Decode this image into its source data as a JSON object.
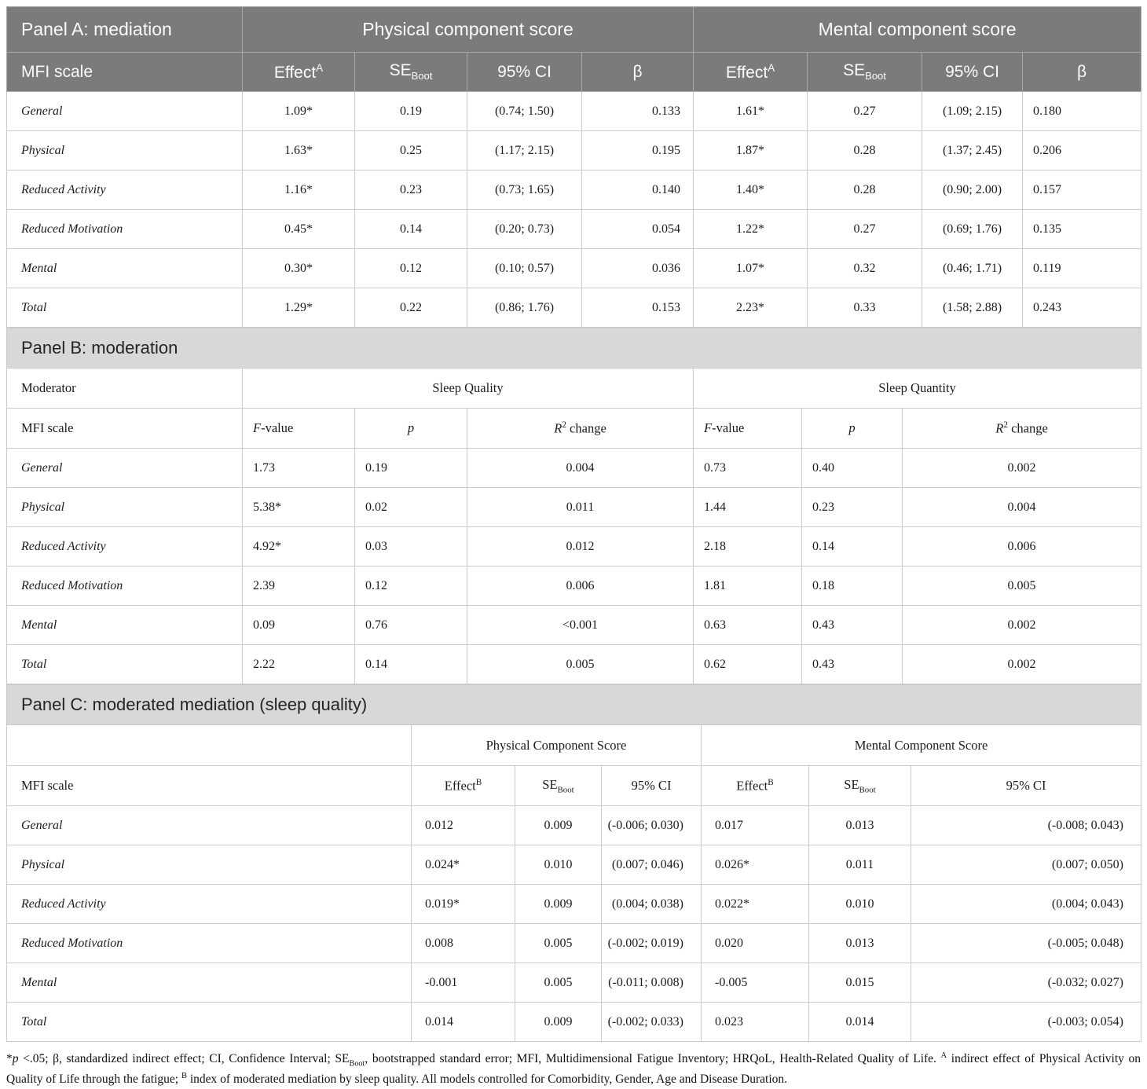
{
  "panel_a": {
    "title": "Panel A: mediation",
    "row_header": "MFI scale",
    "group_headers": [
      "Physical component score",
      "Mental component score"
    ],
    "col_headers": [
      "Effect^{A}",
      "SE_{Boot}",
      "95% CI",
      "β"
    ],
    "rows": [
      {
        "label": "General",
        "cells": [
          "1.09*",
          "0.19",
          "(0.74; 1.50)",
          "0.133",
          "1.61*",
          "0.27",
          "(1.09; 2.15)",
          "0.180"
        ]
      },
      {
        "label": "Physical",
        "cells": [
          "1.63*",
          "0.25",
          "(1.17; 2.15)",
          "0.195",
          "1.87*",
          "0.28",
          "(1.37; 2.45)",
          "0.206"
        ]
      },
      {
        "label": "Reduced Activity",
        "cells": [
          "1.16*",
          "0.23",
          "(0.73; 1.65)",
          "0.140",
          "1.40*",
          "0.28",
          "(0.90; 2.00)",
          "0.157"
        ]
      },
      {
        "label": "Reduced Motivation",
        "cells": [
          "0.45*",
          "0.14",
          "(0.20; 0.73)",
          "0.054",
          "1.22*",
          "0.27",
          "(0.69; 1.76)",
          "0.135"
        ]
      },
      {
        "label": "Mental",
        "cells": [
          "0.30*",
          "0.12",
          "(0.10; 0.57)",
          "0.036",
          "1.07*",
          "0.32",
          "(0.46; 1.71)",
          "0.119"
        ]
      },
      {
        "label": "Total",
        "cells": [
          "1.29*",
          "0.22",
          "(0.86; 1.76)",
          "0.153",
          "2.23*",
          "0.33",
          "(1.58; 2.88)",
          "0.243"
        ]
      }
    ]
  },
  "panel_b": {
    "title": "Panel B: moderation",
    "moderator_label": "Moderator",
    "row_header": "MFI scale",
    "group_headers": [
      "Sleep Quality",
      "Sleep Quantity"
    ],
    "col_headers": [
      "//F//-value",
      "//p//",
      "//R//^{2} change"
    ],
    "rows": [
      {
        "label": "General",
        "cells": [
          "1.73",
          "0.19",
          "0.004",
          "0.73",
          "0.40",
          "0.002"
        ]
      },
      {
        "label": "Physical",
        "cells": [
          "5.38*",
          "0.02",
          "0.011",
          "1.44",
          "0.23",
          "0.004"
        ]
      },
      {
        "label": "Reduced Activity",
        "cells": [
          "4.92*",
          "0.03",
          "0.012",
          "2.18",
          "0.14",
          "0.006"
        ]
      },
      {
        "label": "Reduced Motivation",
        "cells": [
          "2.39",
          "0.12",
          "0.006",
          "1.81",
          "0.18",
          "0.005"
        ]
      },
      {
        "label": "Mental",
        "cells": [
          "0.09",
          "0.76",
          "<0.001",
          "0.63",
          "0.43",
          "0.002"
        ]
      },
      {
        "label": "Total",
        "cells": [
          "2.22",
          "0.14",
          "0.005",
          "0.62",
          "0.43",
          "0.002"
        ]
      }
    ]
  },
  "panel_c": {
    "title": "Panel C: moderated mediation (sleep quality)",
    "row_header": "MFI scale",
    "group_headers": [
      "Physical Component Score",
      "Mental Component Score"
    ],
    "col_headers": [
      "Effect^{B}",
      "SE_{Boot}",
      "95% CI"
    ],
    "rows": [
      {
        "label": "General",
        "cells": [
          "0.012",
          "0.009",
          "(-0.006; 0.030)",
          "0.017",
          "0.013",
          "(-0.008; 0.043)"
        ]
      },
      {
        "label": "Physical",
        "cells": [
          "0.024*",
          "0.010",
          "(0.007; 0.046)",
          "0.026*",
          "0.011",
          "(0.007; 0.050)"
        ]
      },
      {
        "label": "Reduced Activity",
        "cells": [
          "0.019*",
          "0.009",
          "(0.004; 0.038)",
          "0.022*",
          "0.010",
          "(0.004; 0.043)"
        ]
      },
      {
        "label": "Reduced Motivation",
        "cells": [
          "0.008",
          "0.005",
          "(-0.002; 0.019)",
          "0.020",
          "0.013",
          "(-0.005; 0.048)"
        ]
      },
      {
        "label": "Mental",
        "cells": [
          "-0.001",
          "0.005",
          "(-0.011; 0.008)",
          "-0.005",
          "0.015",
          "(-0.032; 0.027)"
        ]
      },
      {
        "label": "Total",
        "cells": [
          "0.014",
          "0.009",
          "(-0.002; 0.033)",
          "0.023",
          "0.014",
          "(-0.003; 0.054)"
        ]
      }
    ]
  },
  "footnote": "*//p// <.05; β, standardized indirect effect; CI, Confidence Interval; SE_{Boot}, bootstrapped standard error; MFI, Multidimensional Fatigue Inventory; HRQoL, Health-Related Quality of Life. ^{A} indirect effect of Physical Activity on Quality of Life through the fatigue; ^{B} index of moderated mediation by sleep quality. All models controlled for Comorbidity, Gender, Age and Disease Duration."
}
